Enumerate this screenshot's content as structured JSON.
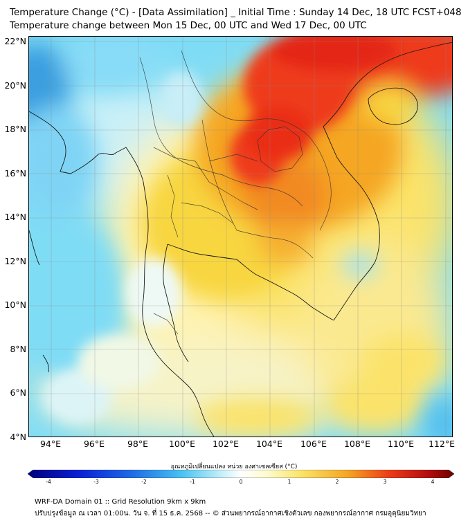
{
  "title_line1": "Temperature Change (°C) - [Data Assimilation] _ Initial Time : Sunday 14 Dec, 18 UTC FCST+048",
  "title_line2": "Temperature change between Mon 15 Dec, 00 UTC and Wed 17 Dec, 00 UTC",
  "y_axis_labels": [
    "22°N",
    "20°N",
    "18°N",
    "16°N",
    "14°N",
    "12°N",
    "10°N",
    "8°N",
    "6°N",
    "4°N"
  ],
  "x_axis_labels": [
    "94°E",
    "96°E",
    "98°E",
    "100°E",
    "102°E",
    "104°E",
    "106°E",
    "108°E",
    "110°E",
    "112°E"
  ],
  "colorbar": {
    "label": "อุณหภูมิเปลี่ยนแปลง หน่วย องศาเซลเซียส (°C)",
    "ticks": [
      "-4",
      "-3",
      "-2",
      "-1",
      "0",
      "1",
      "2",
      "3",
      "4"
    ],
    "min": -4,
    "max": 4
  },
  "footer_line1": "WRF-DA Domain 01 :: Grid Resolution 9km x 9km",
  "footer_line2": "ปรับปรุงข้อมูล ณ เวลา 01:00น. วัน จ. ที่ 15 ธ.ค. 2568 -- © ส่วนพยากรณ์อากาศเชิงตัวเลข กองพยากรณ์อากาศ กรมอุตุนิยมวิทยา"
}
